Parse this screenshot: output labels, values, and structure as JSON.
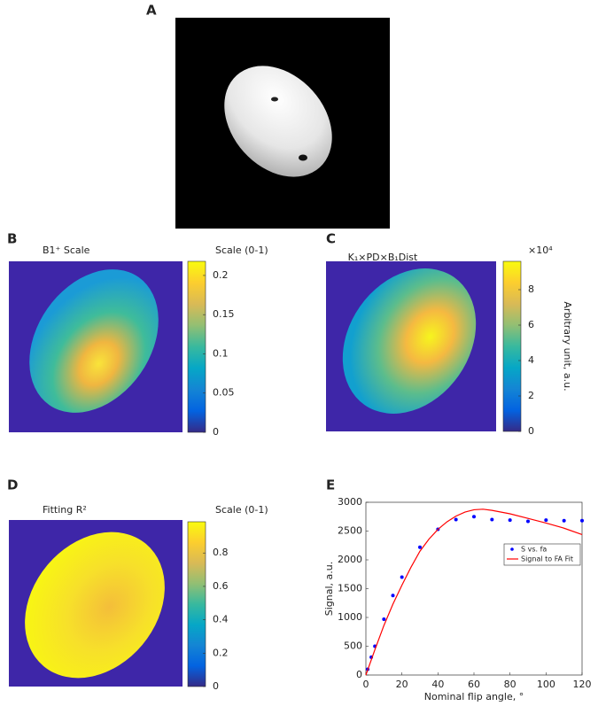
{
  "panel_labels": [
    "A",
    "B",
    "C",
    "D",
    "E"
  ],
  "chart_data": [
    {
      "type": "heatmap",
      "title": "B1⁺ Scale",
      "colorbar_label": "Scale (0-1)",
      "colormap": "parula",
      "clim": [
        0,
        0.218
      ],
      "cticks": [
        0,
        0.05,
        0.1,
        0.15,
        0.2
      ]
    },
    {
      "type": "heatmap",
      "title": "K₁×PD×B₁Dist",
      "colorbar_label": "Arbitrary unit, a.u.",
      "colorbar_exponent": "×10⁴",
      "colormap": "parula",
      "clim": [
        0,
        9.6
      ],
      "cticks": [
        0,
        2,
        4,
        6,
        8
      ]
    },
    {
      "type": "heatmap",
      "title": "Fitting R²",
      "colorbar_label": "Scale (0-1)",
      "colormap": "parula",
      "clim": [
        0,
        0.987
      ],
      "cticks": [
        0,
        0.2,
        0.4,
        0.6,
        0.8
      ]
    },
    {
      "type": "scatter",
      "xlabel": "Nominal flip angle, °",
      "ylabel": "Signal, a.u.",
      "xlim": [
        0,
        120
      ],
      "xticks": [
        0,
        20,
        40,
        60,
        80,
        100,
        120
      ],
      "ylim": [
        0,
        3000
      ],
      "yticks": [
        0,
        500,
        1000,
        1500,
        2000,
        2500,
        3000
      ],
      "legend": "right",
      "series": [
        {
          "name": "S vs. fa",
          "type": "scatter",
          "color": "#0000ff",
          "x": [
            1,
            3,
            5,
            10,
            15,
            20,
            30,
            40,
            50,
            60,
            70,
            80,
            90,
            100,
            110,
            120
          ],
          "values": [
            100,
            310,
            500,
            970,
            1380,
            1700,
            2220,
            2530,
            2700,
            2750,
            2700,
            2690,
            2670,
            2690,
            2680,
            2680
          ]
        },
        {
          "name": "Signal to FA Fit",
          "type": "line",
          "color": "#ff0000",
          "x": [
            0,
            5,
            10,
            15,
            20,
            25,
            30,
            35,
            40,
            45,
            50,
            55,
            60,
            65,
            70,
            80,
            90,
            100,
            110,
            120
          ],
          "values": [
            0,
            440,
            860,
            1230,
            1560,
            1870,
            2150,
            2360,
            2530,
            2660,
            2760,
            2830,
            2870,
            2880,
            2860,
            2800,
            2720,
            2640,
            2550,
            2440
          ]
        }
      ]
    }
  ]
}
